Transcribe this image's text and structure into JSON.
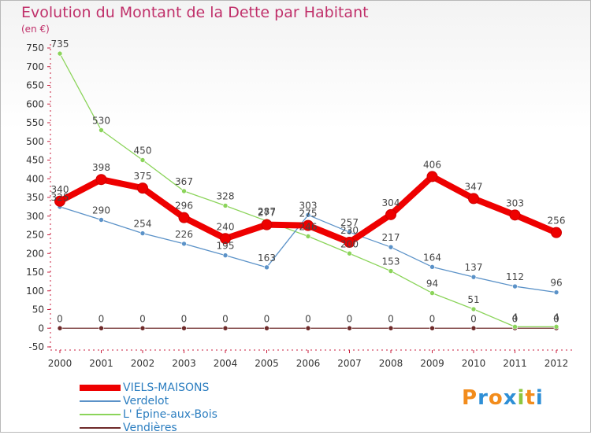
{
  "title": "Evolution du Montant de la Dette par Habitant",
  "unit_label": "(en €)",
  "logo_text": "Proxiti",
  "colors": {
    "title": "#c0306a",
    "axis": "#c81e3c",
    "legend_text": "#2c7ec0"
  },
  "chart_data": {
    "type": "line",
    "title": "Evolution du Montant de la Dette par Habitant",
    "ylabel": "(en €)",
    "xlabel": "",
    "x": [
      2000,
      2001,
      2002,
      2003,
      2004,
      2005,
      2006,
      2007,
      2008,
      2009,
      2010,
      2011,
      2012
    ],
    "ylim": [
      -50,
      750
    ],
    "yticks": [
      -50,
      0,
      50,
      100,
      150,
      200,
      250,
      300,
      350,
      400,
      450,
      500,
      550,
      600,
      650,
      700,
      750
    ],
    "grid": false,
    "legend": "bottom-left",
    "series": [
      {
        "name": "VIELS-MAISONS",
        "color": "#ee0000",
        "values": [
          340,
          398,
          375,
          296,
          240,
          277,
          275,
          230,
          304,
          406,
          347,
          303,
          256
        ]
      },
      {
        "name": "Verdelot",
        "color": "#5b92c8",
        "values": [
          325,
          290,
          254,
          226,
          195,
          163,
          303,
          257,
          217,
          164,
          137,
          112,
          96
        ]
      },
      {
        "name": "L' Épine-aux-Bois",
        "color": "#8bd45a",
        "values": [
          735,
          530,
          450,
          367,
          328,
          287,
          246,
          200,
          153,
          94,
          51,
          4,
          4
        ]
      },
      {
        "name": "Vendières",
        "color": "#6e2a2a",
        "values": [
          0,
          0,
          0,
          0,
          0,
          0,
          0,
          0,
          0,
          0,
          0,
          0,
          0
        ]
      }
    ]
  }
}
